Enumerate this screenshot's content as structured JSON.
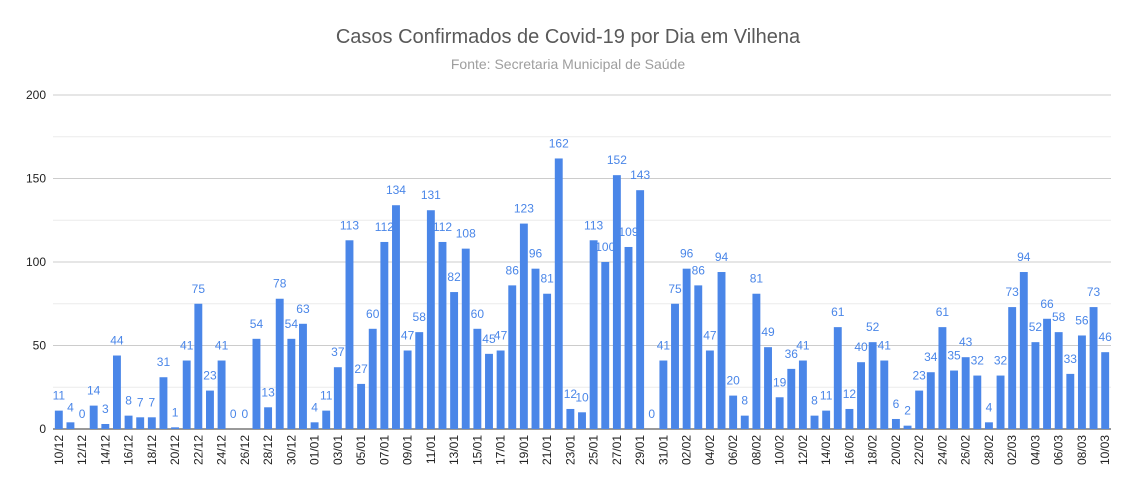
{
  "chart_data": {
    "type": "bar",
    "title": "Casos Confirmados de Covid-19 por Dia em Vilhena",
    "subtitle": "Fonte: Secretaria Municipal de Saúde",
    "xlabel": "",
    "ylabel": "",
    "ylim": [
      0,
      200
    ],
    "yticks": [
      0,
      50,
      100,
      150,
      200
    ],
    "grid": true,
    "legend": "none",
    "bar_color": "#4a86e8",
    "label_color": "#4a86e8",
    "categories": [
      "10/12",
      "11/12",
      "12/12",
      "13/12",
      "14/12",
      "15/12",
      "16/12",
      "17/12",
      "18/12",
      "19/12",
      "20/12",
      "21/12",
      "22/12",
      "23/12",
      "24/12",
      "25/12",
      "26/12",
      "27/12",
      "28/12",
      "29/12",
      "30/12",
      "31/12",
      "01/01",
      "02/01",
      "03/01",
      "04/01",
      "05/01",
      "06/01",
      "07/01",
      "08/01",
      "09/01",
      "10/01",
      "11/01",
      "12/01",
      "13/01",
      "14/01",
      "15/01",
      "16/01",
      "17/01",
      "18/01",
      "19/01",
      "20/01",
      "21/01",
      "22/01",
      "23/01",
      "24/01",
      "25/01",
      "26/01",
      "27/01",
      "28/01",
      "29/01",
      "30/01",
      "31/01",
      "01/02",
      "02/02",
      "03/02",
      "04/02",
      "05/02",
      "06/02",
      "07/02",
      "08/02",
      "09/02",
      "10/02",
      "11/02",
      "12/02",
      "13/02",
      "14/02",
      "15/02",
      "16/02",
      "17/02",
      "18/02",
      "19/02",
      "20/02",
      "21/02",
      "22/02",
      "23/02",
      "24/02",
      "25/02",
      "26/02",
      "27/02",
      "28/02",
      "01/03",
      "02/03",
      "03/03",
      "04/03",
      "05/03",
      "06/03",
      "07/03",
      "08/03",
      "09/03",
      "10/03"
    ],
    "values": [
      11,
      4,
      0,
      14,
      3,
      44,
      8,
      7,
      7,
      31,
      1,
      41,
      75,
      23,
      41,
      0,
      0,
      54,
      13,
      78,
      54,
      63,
      4,
      11,
      37,
      113,
      27,
      60,
      112,
      134,
      47,
      58,
      131,
      112,
      82,
      108,
      60,
      45,
      47,
      86,
      123,
      96,
      81,
      162,
      12,
      10,
      113,
      100,
      152,
      109,
      143,
      0,
      41,
      75,
      96,
      86,
      47,
      94,
      20,
      8,
      81,
      49,
      19,
      36,
      41,
      8,
      11,
      61,
      12,
      40,
      52,
      41,
      6,
      2,
      23,
      34,
      61,
      35,
      43,
      32,
      4,
      32,
      73,
      94,
      52,
      66,
      58,
      33,
      56,
      73,
      46
    ]
  }
}
